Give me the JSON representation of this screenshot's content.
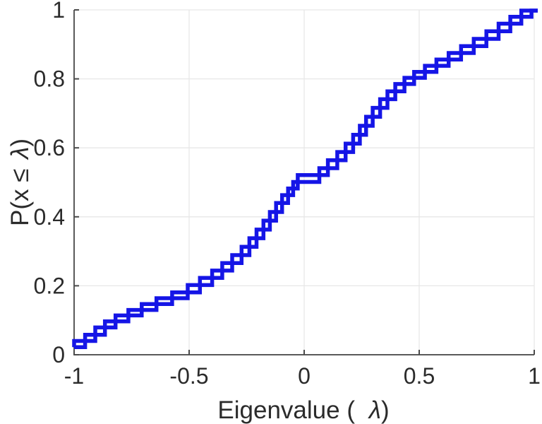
{
  "figure": {
    "background": "#ffffff",
    "grid_color": "#e7e7e7",
    "spine_color": "#5a5a5a",
    "tick_color": "#4a4a4a",
    "text_color": "#2b2b2b"
  },
  "chart_data": {
    "type": "line",
    "subtype": "empirical-cdf-stairs",
    "title": "",
    "xlabel_prefix": "Eigenvalue ( ",
    "xlabel_symbol": "λ",
    "xlabel_suffix": ")",
    "ylabel_prefix": "P(x ",
    "ylabel_leq": "≤ ",
    "ylabel_symbol": "λ",
    "ylabel_suffix": ")",
    "xlim": [
      -1,
      1
    ],
    "ylim": [
      0,
      1
    ],
    "x_ticks": [
      -1,
      -0.5,
      0,
      0.5,
      1
    ],
    "x_tick_labels": [
      "-1",
      "-0.5",
      "0",
      "0.5",
      "1"
    ],
    "y_ticks": [
      0,
      0.2,
      0.4,
      0.6,
      0.8,
      1
    ],
    "y_tick_labels": [
      "0",
      "0.2",
      "0.4",
      "0.6",
      "0.8",
      "1"
    ],
    "grid": true,
    "legend_position": "none",
    "series": [
      {
        "name": "eigenvalue-ecdf",
        "color": "#1515e6",
        "line_width": 5.5,
        "render": "double-stairs (steps-pre and steps-post of same points)",
        "points": [
          [
            -1.0,
            0.022
          ],
          [
            -0.952,
            0.04
          ],
          [
            -0.908,
            0.058
          ],
          [
            -0.866,
            0.079
          ],
          [
            -0.82,
            0.097
          ],
          [
            -0.764,
            0.114
          ],
          [
            -0.706,
            0.13
          ],
          [
            -0.642,
            0.147
          ],
          [
            -0.574,
            0.164
          ],
          [
            -0.506,
            0.181
          ],
          [
            -0.453,
            0.202
          ],
          [
            -0.4,
            0.223
          ],
          [
            -0.356,
            0.244
          ],
          [
            -0.313,
            0.266
          ],
          [
            -0.272,
            0.289
          ],
          [
            -0.238,
            0.313
          ],
          [
            -0.207,
            0.338
          ],
          [
            -0.177,
            0.363
          ],
          [
            -0.149,
            0.389
          ],
          [
            -0.122,
            0.414
          ],
          [
            -0.096,
            0.44
          ],
          [
            -0.07,
            0.463
          ],
          [
            -0.048,
            0.482
          ],
          [
            -0.028,
            0.501
          ],
          [
            0.066,
            0.521
          ],
          [
            0.103,
            0.541
          ],
          [
            0.144,
            0.564
          ],
          [
            0.18,
            0.588
          ],
          [
            0.213,
            0.612
          ],
          [
            0.242,
            0.638
          ],
          [
            0.269,
            0.664
          ],
          [
            0.298,
            0.69
          ],
          [
            0.33,
            0.716
          ],
          [
            0.362,
            0.741
          ],
          [
            0.396,
            0.764
          ],
          [
            0.436,
            0.785
          ],
          [
            0.478,
            0.803
          ],
          [
            0.525,
            0.82
          ],
          [
            0.575,
            0.838
          ],
          [
            0.628,
            0.856
          ],
          [
            0.682,
            0.875
          ],
          [
            0.737,
            0.895
          ],
          [
            0.792,
            0.916
          ],
          [
            0.845,
            0.938
          ],
          [
            0.896,
            0.96
          ],
          [
            0.944,
            0.98
          ],
          [
            0.988,
            0.998
          ]
        ],
        "tread_extends_to": 1.015
      }
    ]
  }
}
